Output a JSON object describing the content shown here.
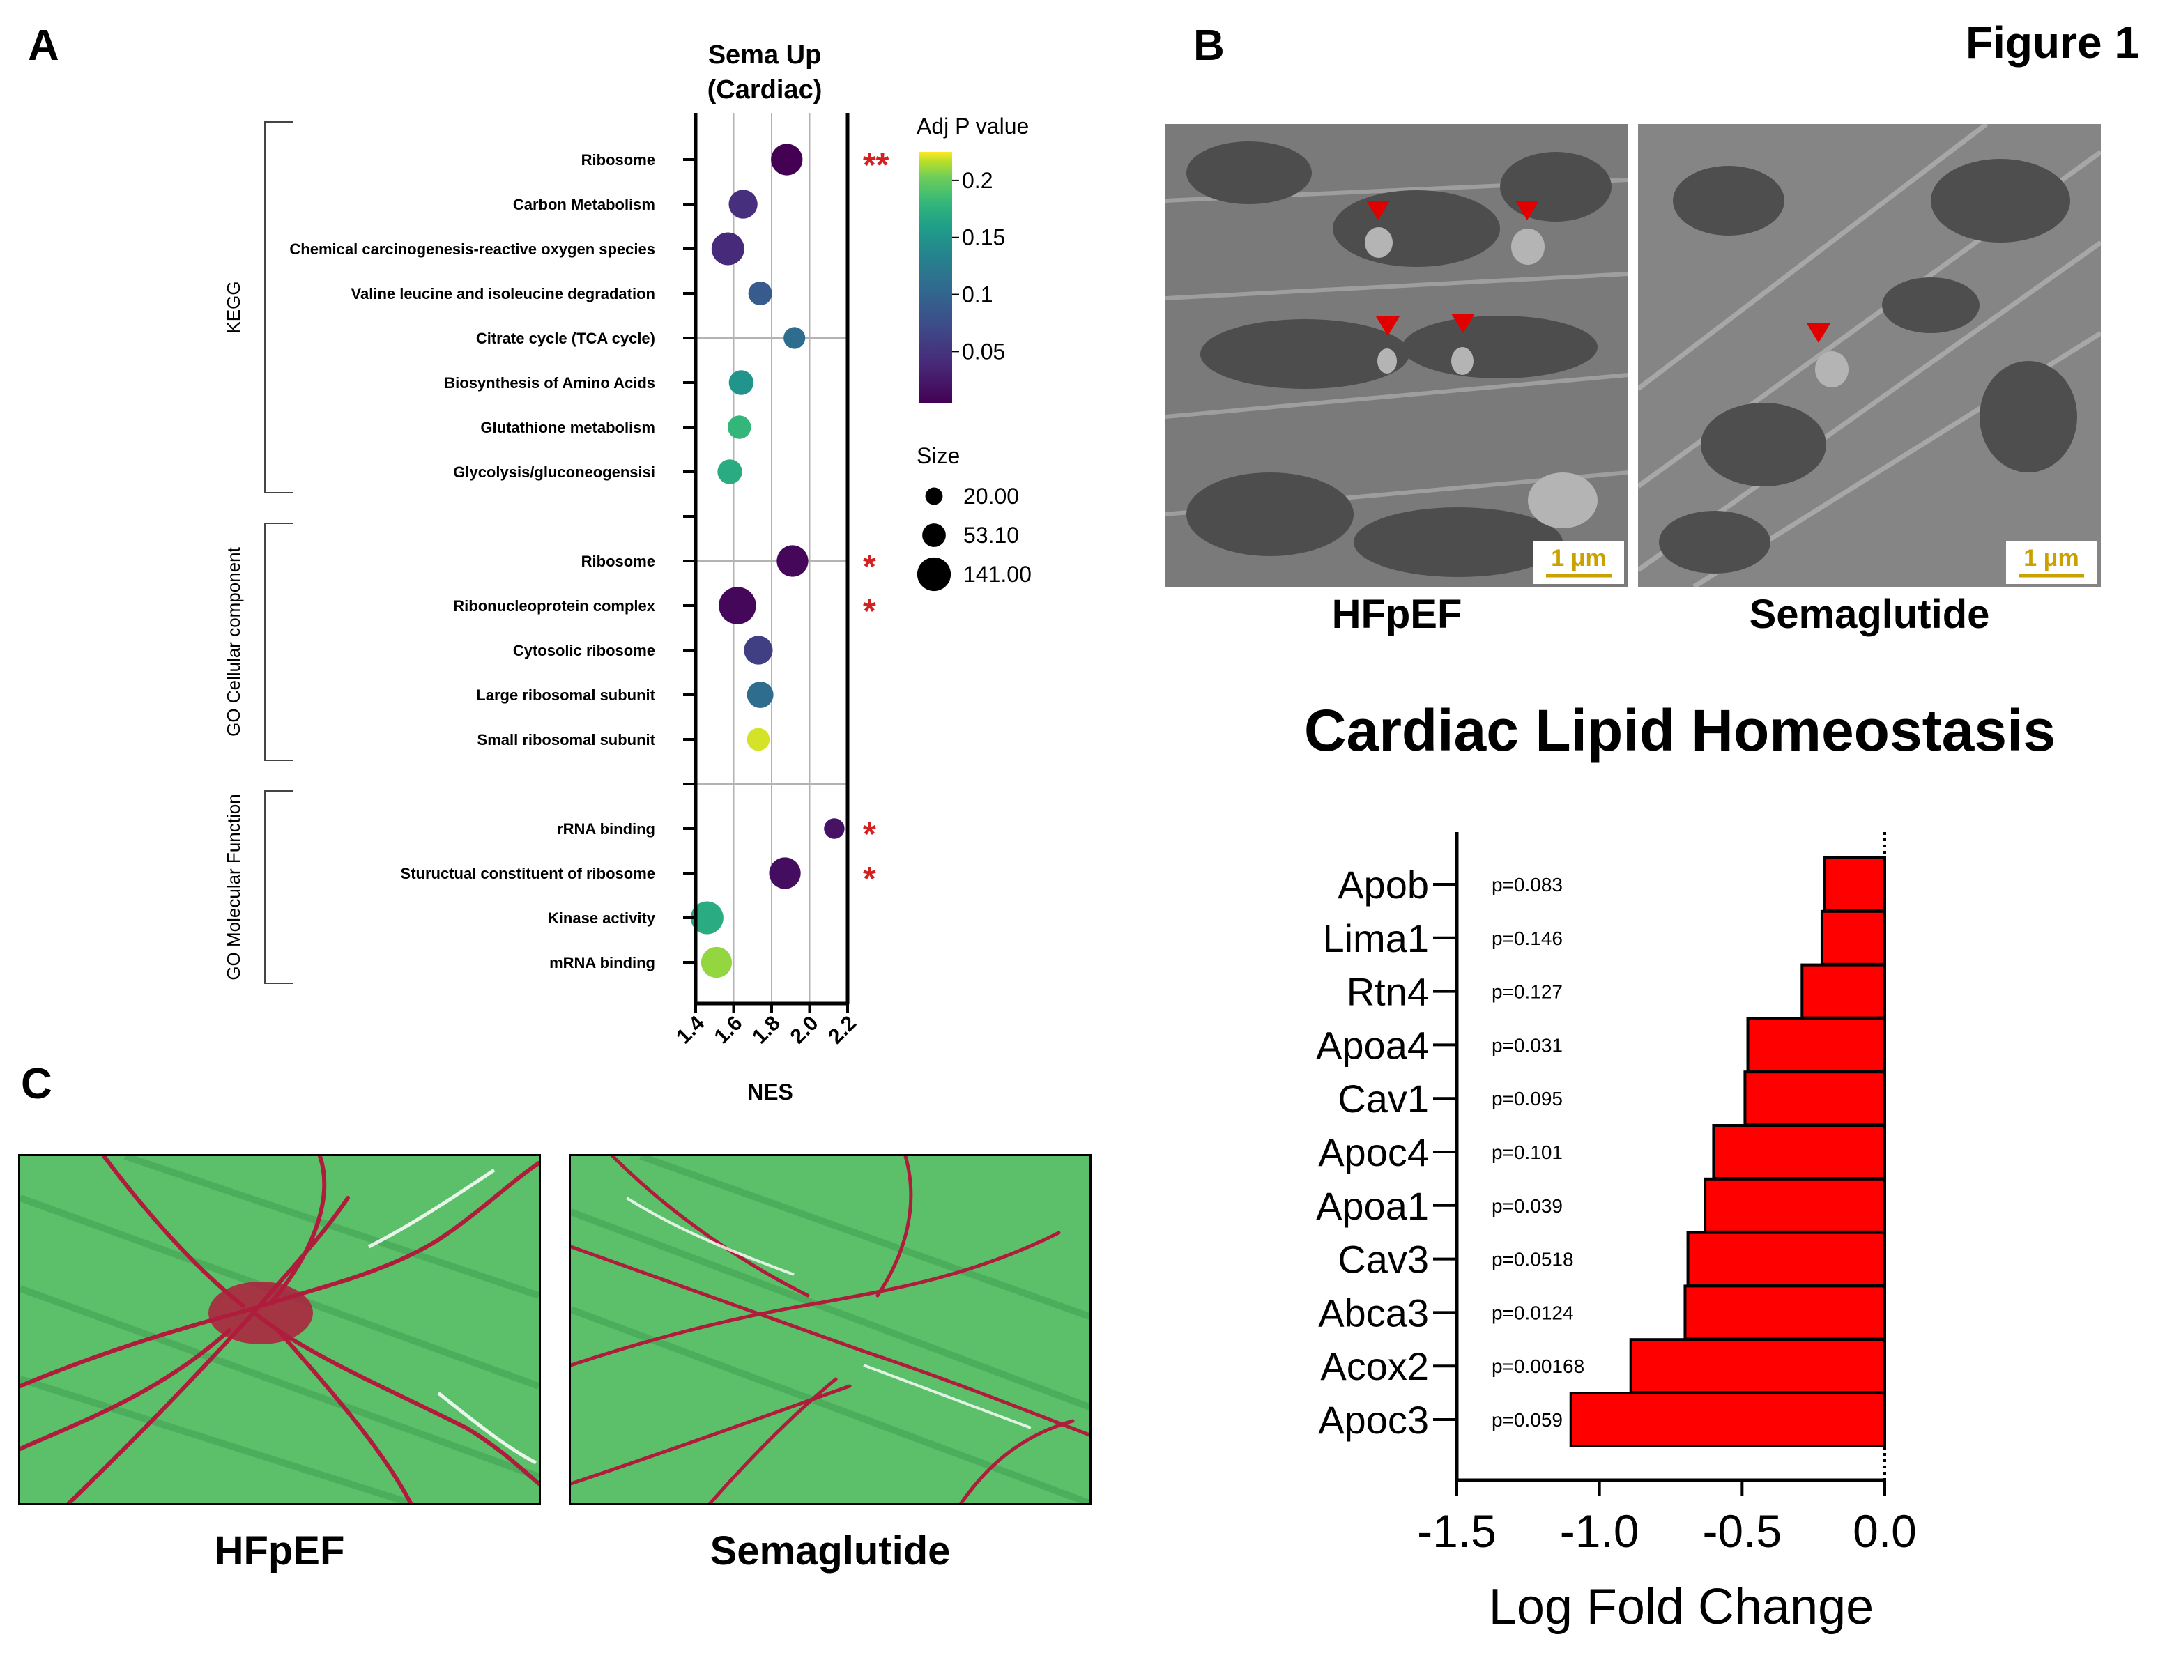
{
  "figure_label": "Figure 1",
  "panels": {
    "a": {
      "letter": "A"
    },
    "b": {
      "letter": "B",
      "scale_bar_left": "1 μm",
      "scale_bar_right": "1 μm",
      "caption_left": "HFpEF",
      "caption_right": "Semaglutide"
    },
    "c": {
      "letter": "C",
      "caption_left": "HFpEF",
      "caption_right": "Semaglutide"
    }
  },
  "colors": {
    "bar_fill": "#ff0000",
    "star": "#d42020",
    "viridis_low": "#440154",
    "viridis_high": "#fde725"
  },
  "chart_data": [
    {
      "type": "scatter",
      "title": "Sema Up",
      "subtitle": "(Cardiac)",
      "xlabel": "NES",
      "xlim": [
        1.4,
        2.2
      ],
      "xticks": [
        "1.4",
        "1.6",
        "1.8",
        "2.0",
        "2.2"
      ],
      "xtick_values": [
        1.4,
        1.6,
        1.8,
        2.0,
        2.2
      ],
      "grid": true,
      "groups": [
        {
          "name": "KEGG",
          "start_row": 0,
          "end_row": 7
        },
        {
          "name": "GO Cellular component",
          "start_row": 9,
          "end_row": 13
        },
        {
          "name": "GO Molecular Function",
          "start_row": 15,
          "end_row": 18
        }
      ],
      "points": [
        {
          "row": 0,
          "term": "Ribosome",
          "nes": 1.88,
          "padj": 0.005,
          "size": 90,
          "star": "**"
        },
        {
          "row": 1,
          "term": "Carbon Metabolism",
          "nes": 1.65,
          "padj": 0.045,
          "size": 70,
          "star": ""
        },
        {
          "row": 2,
          "term": "Chemical carcinogenesis-reactive oxygen species",
          "nes": 1.57,
          "padj": 0.04,
          "size": 100,
          "star": ""
        },
        {
          "row": 3,
          "term": "Valine leucine and isoleucine degradation",
          "nes": 1.74,
          "padj": 0.09,
          "size": 40,
          "star": ""
        },
        {
          "row": 4,
          "term": "Citrate cycle (TCA cycle)",
          "nes": 1.92,
          "padj": 0.11,
          "size": 30,
          "star": ""
        },
        {
          "row": 5,
          "term": "Biosynthesis of Amino Acids",
          "nes": 1.64,
          "padj": 0.15,
          "size": 45,
          "star": ""
        },
        {
          "row": 6,
          "term": "Glutathione metabolism",
          "nes": 1.63,
          "padj": 0.18,
          "size": 38,
          "star": ""
        },
        {
          "row": 7,
          "term": "Glycolysis/gluconeogensisi",
          "nes": 1.58,
          "padj": 0.17,
          "size": 45,
          "star": ""
        },
        {
          "row": 9,
          "term": "Ribosome",
          "nes": 1.91,
          "padj": 0.01,
          "size": 90,
          "star": "*"
        },
        {
          "row": 10,
          "term": "Ribonucleoprotein complex",
          "nes": 1.62,
          "padj": 0.01,
          "size": 141,
          "star": "*"
        },
        {
          "row": 11,
          "term": "Cytosolic ribosome",
          "nes": 1.73,
          "padj": 0.06,
          "size": 70,
          "star": ""
        },
        {
          "row": 12,
          "term": "Large ribosomal subunit",
          "nes": 1.74,
          "padj": 0.11,
          "size": 55,
          "star": ""
        },
        {
          "row": 13,
          "term": "Small ribosomal subunit",
          "nes": 1.73,
          "padj": 0.22,
          "size": 35,
          "star": ""
        },
        {
          "row": 15,
          "term": "rRNA binding",
          "nes": 2.13,
          "padj": 0.02,
          "size": 25,
          "star": "*"
        },
        {
          "row": 16,
          "term": "Stuructual constituent of ribosome",
          "nes": 1.87,
          "padj": 0.015,
          "size": 90,
          "star": "*"
        },
        {
          "row": 17,
          "term": "Kinase activity",
          "nes": 1.46,
          "padj": 0.17,
          "size": 100,
          "star": ""
        },
        {
          "row": 18,
          "term": "mRNA binding",
          "nes": 1.51,
          "padj": 0.21,
          "size": 85,
          "star": ""
        }
      ],
      "colorbar": {
        "title": "Adj P value",
        "ticks": [
          "0.2",
          "0.15",
          "0.1",
          "0.05"
        ],
        "tick_values": [
          0.2,
          0.15,
          0.1,
          0.05
        ],
        "range": [
          0.005,
          0.225
        ]
      },
      "size_legend": {
        "title": "Size",
        "entries": [
          "20.00",
          "53.10",
          "141.00"
        ],
        "values": [
          20,
          53.1,
          141
        ]
      }
    },
    {
      "type": "bar",
      "orientation": "horizontal",
      "title": "Cardiac Lipid Homeostasis",
      "xlabel": "Log Fold Change",
      "xlim": [
        -1.5,
        0.0
      ],
      "xticks": [
        "-1.5",
        "-1.0",
        "-0.5",
        "0.0"
      ],
      "xtick_values": [
        -1.5,
        -1.0,
        -0.5,
        0.0
      ],
      "categories": [
        "Apob",
        "Lima1",
        "Rtn4",
        "Apoa4",
        "Cav1",
        "Apoc4",
        "Apoa1",
        "Cav3",
        "Abca3",
        "Acox2",
        "Apoc3"
      ],
      "values": [
        -0.21,
        -0.22,
        -0.29,
        -0.48,
        -0.49,
        -0.6,
        -0.63,
        -0.69,
        -0.7,
        -0.89,
        -1.1
      ],
      "pvalues": [
        "p=0.083",
        "p=0.146",
        "p=0.127",
        "p=0.031",
        "p=0.095",
        "p=0.101",
        "p=0.039",
        "p=0.0518",
        "p=0.0124",
        "p=0.00168",
        "p=0.059"
      ]
    }
  ]
}
